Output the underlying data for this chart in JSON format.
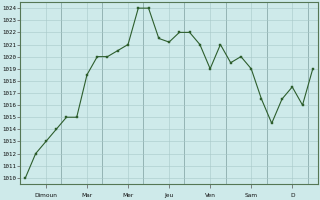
{
  "y_values": [
    1010,
    1012,
    1013,
    1014,
    1015,
    1015,
    1018.5,
    1020,
    1020,
    1020.5,
    1021,
    1024,
    1024,
    1021.5,
    1021.2,
    1022,
    1022,
    1021,
    1019,
    1021,
    1019.5,
    1020,
    1019,
    1016.5,
    1014.5,
    1016.5,
    1017.5,
    1016,
    1019
  ],
  "x_tick_labels": [
    "Dimoun",
    "Mar",
    "Mer",
    "Jeu",
    "Ven",
    "Sam",
    "D"
  ],
  "y_min": 1010,
  "y_max": 1024,
  "line_color": "#2d5e2d",
  "marker_color": "#2d5e2d",
  "bg_color": "#ceeaea",
  "grid_major_color": "#a8c8c8",
  "grid_minor_color": "#bcd8d8"
}
